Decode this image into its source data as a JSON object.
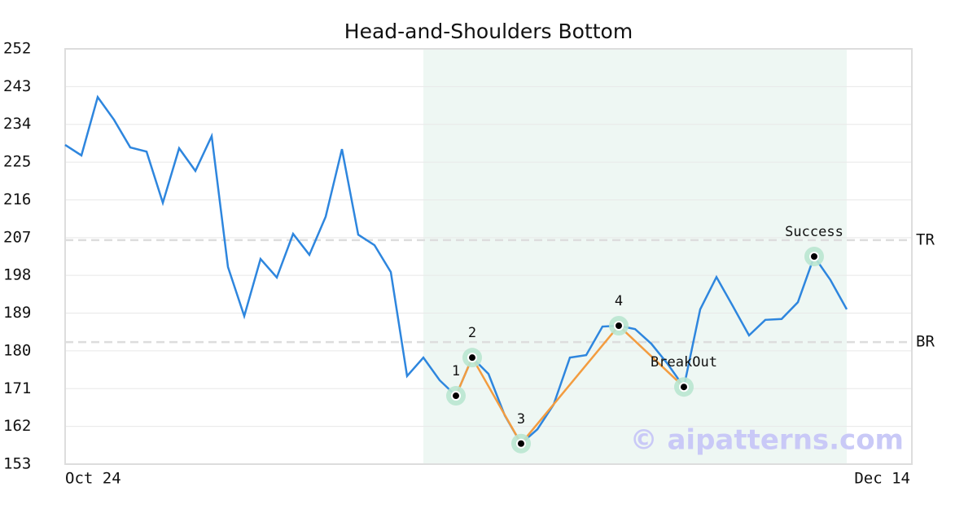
{
  "chart_data": {
    "type": "line",
    "title": "Head-and-Shoulders Bottom",
    "watermark": "© aipatterns.com",
    "categories": [
      "Oct 24",
      null,
      null,
      null,
      null,
      null,
      null,
      null,
      null,
      null,
      null,
      null,
      null,
      null,
      null,
      null,
      null,
      null,
      null,
      null,
      null,
      null,
      null,
      null,
      null,
      null,
      null,
      null,
      null,
      null,
      null,
      null,
      null,
      null,
      null,
      null,
      null,
      null,
      null,
      null,
      null,
      null,
      null,
      null,
      null,
      null,
      null,
      null,
      null,
      null,
      null,
      null,
      "Dec 14"
    ],
    "values": [
      229.1,
      226.6,
      240.5,
      235.1,
      228.5,
      227.5,
      215.3,
      228.3,
      222.9,
      231.2,
      200.0,
      188.3,
      201.9,
      197.5,
      207.9,
      202.9,
      212.0,
      228.1,
      207.7,
      205.2,
      198.8,
      174.0,
      178.4,
      173.0,
      169.3,
      178.4,
      174.5,
      164.6,
      157.9,
      161.3,
      167.2,
      178.4,
      179.0,
      185.8,
      186.0,
      185.2,
      181.7,
      176.9,
      171.4,
      189.9,
      197.6,
      190.7,
      183.7,
      187.4,
      187.6,
      191.6,
      202.5,
      196.9,
      189.9,
      null,
      null,
      null,
      null
    ],
    "color": "#2e86de",
    "pattern_values": [
      null,
      null,
      null,
      null,
      null,
      null,
      null,
      null,
      null,
      null,
      null,
      null,
      null,
      null,
      null,
      null,
      null,
      null,
      null,
      null,
      null,
      null,
      null,
      null,
      169.3,
      178.4,
      null,
      null,
      157.9,
      null,
      null,
      null,
      null,
      null,
      186.0,
      null,
      null,
      null,
      171.4,
      null,
      null,
      null,
      null,
      null,
      null,
      null,
      null,
      null,
      null,
      null,
      null,
      null,
      null
    ],
    "pattern_color": "#f39c3f",
    "marker_values": [
      null,
      null,
      null,
      null,
      null,
      null,
      null,
      null,
      null,
      null,
      null,
      null,
      null,
      null,
      null,
      null,
      null,
      null,
      null,
      null,
      null,
      null,
      null,
      null,
      169.3,
      178.4,
      null,
      null,
      157.9,
      null,
      null,
      null,
      null,
      null,
      186.0,
      null,
      null,
      null,
      171.4,
      null,
      null,
      null,
      null,
      null,
      null,
      null,
      202.5,
      null,
      null,
      null,
      null,
      null,
      null
    ],
    "marker_labels": [
      null,
      null,
      null,
      null,
      null,
      null,
      null,
      null,
      null,
      null,
      null,
      null,
      null,
      null,
      null,
      null,
      null,
      null,
      null,
      null,
      null,
      null,
      null,
      null,
      "1",
      "2",
      null,
      null,
      "3",
      null,
      null,
      null,
      null,
      null,
      "4",
      null,
      null,
      null,
      "BreakOut",
      null,
      null,
      null,
      null,
      null,
      null,
      null,
      "Success",
      null,
      null,
      null,
      null,
      null,
      null
    ],
    "marker_color": "#b9e6d0",
    "highlight": [
      22,
      48
    ],
    "highlight_color": "#eef7f3",
    "levels": [
      {
        "label": "TR",
        "value": 206.4
      },
      {
        "label": "BR",
        "value": 182.1
      }
    ],
    "ylim": [
      153,
      252
    ],
    "yticks": [
      153,
      162,
      171,
      180,
      189,
      198,
      207,
      216,
      225,
      234,
      243,
      252
    ],
    "grid": true
  }
}
